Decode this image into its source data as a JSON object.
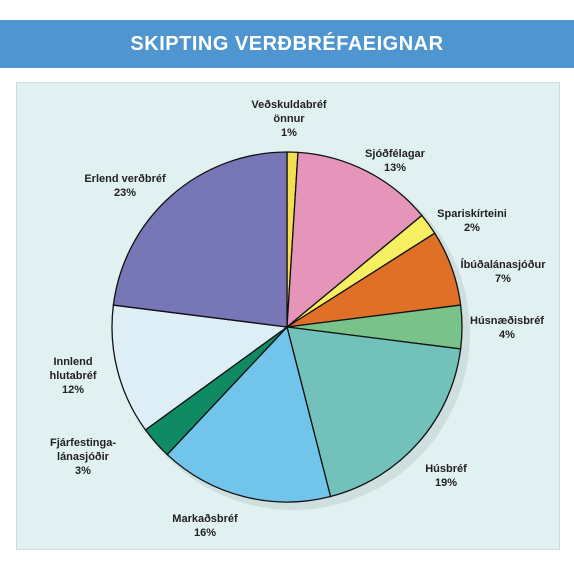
{
  "chart_data": {
    "type": "pie",
    "title": "SKIPTING VERÐBRÉFAEIGNAR",
    "categories": [
      "Veðskuldabréf\nönnur",
      "Sjóðfélagar",
      "Spariskírteini",
      "Íbúðalánasjóður",
      "Húsnæðisbréf",
      "Húsbréf",
      "Markaðsbréf",
      "Fjárfestinga-\nlánasjóðir",
      "Innlend\nhlutabréf",
      "Erlend verðbréf"
    ],
    "values": [
      1,
      13,
      2,
      7,
      4,
      19,
      16,
      3,
      12,
      23
    ],
    "value_labels": [
      "1%",
      "13%",
      "2%",
      "7%",
      "4%",
      "19%",
      "16%",
      "3%",
      "12%",
      "23%"
    ],
    "colors": [
      "#f5df4f",
      "#e594ba",
      "#f6ef62",
      "#e06f27",
      "#79c28a",
      "#72c2bb",
      "#72c5ea",
      "#0f8a62",
      "#ddeef6",
      "#7777b8"
    ]
  }
}
